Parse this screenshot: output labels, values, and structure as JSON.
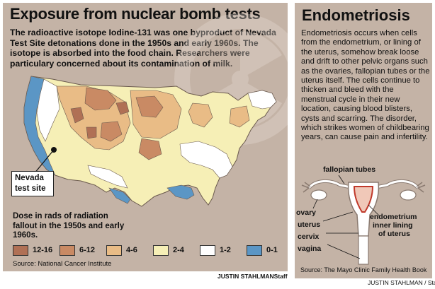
{
  "left": {
    "title": "Exposure from nuclear bomb tests",
    "intro": "The radioactive isotope Iodine-131 was one byproduct of Nevada Test Site detonations done in the 1950s and early 1960s. The isotope is absorbed into the food chain. Researchers were particulary concerned about its contamination of milk.",
    "nevada_label_line1": "Nevada",
    "nevada_label_line2": "test site",
    "dose_title": "Dose in rads of radiation fallout in the 1950s and early 1960s.",
    "legend": [
      {
        "label": "12-16",
        "color": "#b07055"
      },
      {
        "label": "6-12",
        "color": "#c98a64"
      },
      {
        "label": "4-6",
        "color": "#e9bc86"
      },
      {
        "label": "2-4",
        "color": "#f6efb6"
      },
      {
        "label": "1-2",
        "color": "#ffffff"
      },
      {
        "label": "0-1",
        "color": "#5b96c5"
      }
    ],
    "source": "Source: National Cancer Institute",
    "credit": "JUSTIN STAHLMANStaff"
  },
  "right": {
    "title": "Endometriosis",
    "body": "Endometriosis occurs when cells from the endometrium, or lining of the uterus, somehow break loose and drift to other pelvic organs such as the ovaries, fallopian tubes or the uterus itself. The cells continue to thicken and bleed with the menstrual cycle in their new location, causing blood blisters, cysts and scarring. The disorder, which strikes women of childbearing years, can cause pain and infertility.",
    "labels": {
      "fallopian": "fallopian tubes",
      "ovary": "ovary",
      "uterus": "uterus",
      "cervix": "cervix",
      "vagina": "vagina",
      "endometrium": "endometrium",
      "inner1": "inner lining",
      "inner2": "of uterus"
    },
    "source": "Source: The Mayo Clinic Family  Health Book",
    "credit": "JUSTIN STAHLMAN / Staff"
  }
}
